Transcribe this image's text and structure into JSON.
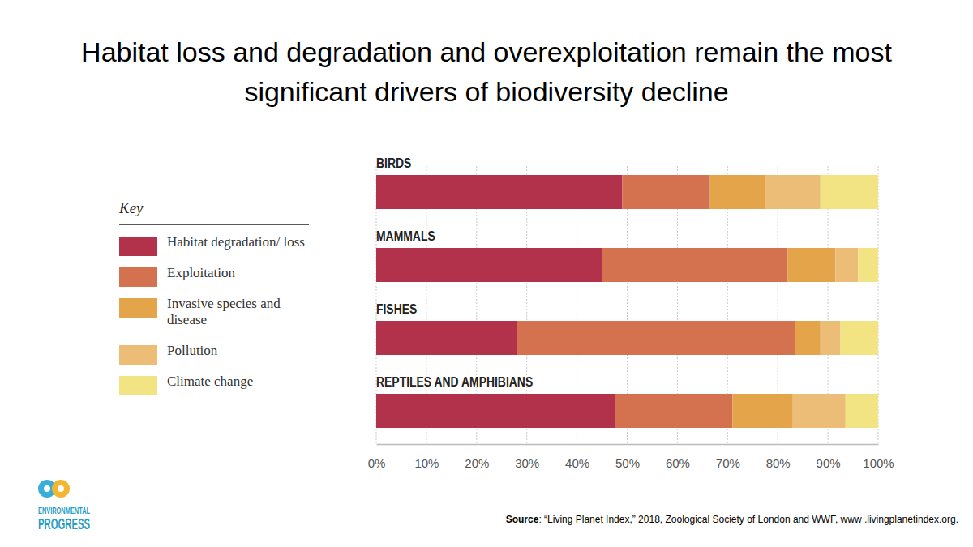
{
  "chart_data": {
    "type": "bar",
    "orientation": "horizontal",
    "stacked": true,
    "grid": true,
    "legend": "left",
    "title": "Habitat loss and degradation and overexploitation remain the most significant drivers of biodiversity decline",
    "legend_title": "Key",
    "categories": [
      "BIRDS",
      "MAMMALS",
      "FISHES",
      "REPTILES AND AMPHIBIANS"
    ],
    "series": [
      {
        "name": "Habitat degradation/ loss",
        "color": "#b3324b",
        "values": [
          49,
          45,
          28,
          47.5
        ]
      },
      {
        "name": "Exploitation",
        "color": "#d4714f",
        "values": [
          17.5,
          37,
          55.5,
          23.5
        ]
      },
      {
        "name": "Invasive species and disease",
        "color": "#e4a44a",
        "values": [
          11,
          9.5,
          5,
          12
        ]
      },
      {
        "name": "Pollution",
        "color": "#ecbd77",
        "values": [
          11,
          4.5,
          4,
          10.5
        ]
      },
      {
        "name": "Climate change",
        "color": "#f2e383",
        "values": [
          11.5,
          4,
          7.5,
          6.5
        ]
      }
    ],
    "xlim": [
      0,
      100
    ],
    "xticks": [
      {
        "value": 0,
        "label": "0%"
      },
      {
        "value": 10,
        "label": "10%"
      },
      {
        "value": 20,
        "label": "20%"
      },
      {
        "value": 30,
        "label": "30%"
      },
      {
        "value": 40,
        "label": "40%"
      },
      {
        "value": 50,
        "label": "50%"
      },
      {
        "value": 60,
        "label": "60%"
      },
      {
        "value": 70,
        "label": "70%"
      },
      {
        "value": 80,
        "label": "80%"
      },
      {
        "value": 90,
        "label": "90%"
      },
      {
        "value": 100,
        "label": "100%"
      }
    ],
    "source": {
      "label": "Source",
      "text": ": “Living Planet Index,” 2018, Zoological Society of London and WWF, www .livingplanetindex.org."
    },
    "logo": [
      "ENVIRONMENTAL",
      "PROGRESS"
    ]
  }
}
